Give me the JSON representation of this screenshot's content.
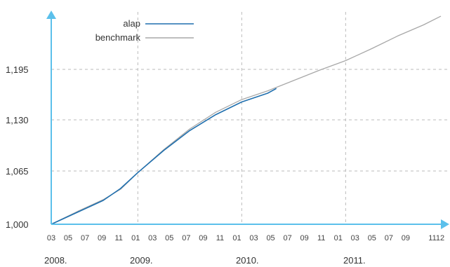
{
  "chart_data": {
    "type": "line",
    "title": "",
    "xlabel": "",
    "ylabel": "",
    "yticks": [
      "1,000",
      "1,065",
      "1,130",
      "1,195"
    ],
    "ylim": [
      1000,
      1260
    ],
    "xlim": [
      "2008-03",
      "2011-12"
    ],
    "x_month_labels": [
      "03",
      "05",
      "07",
      "09",
      "11",
      "01",
      "03",
      "05",
      "07",
      "09",
      "11",
      "01",
      "03",
      "05",
      "07",
      "09",
      "11",
      "01",
      "03",
      "05",
      "07",
      "09",
      "11",
      "12"
    ],
    "x_year_labels": [
      "2008.",
      "2009.",
      "2010.",
      "2011."
    ],
    "grid": true,
    "legend_position": "top-left",
    "colors": {
      "alap": "#1f6fae",
      "benchmark": "#a8a8a8",
      "axis": "#5bc0eb",
      "grid": "#bbbbbb"
    },
    "series": [
      {
        "name": "alap",
        "x": [
          "2008-03",
          "2008-06",
          "2008-09",
          "2008-11",
          "2009-01",
          "2009-04",
          "2009-07",
          "2009-10",
          "2010-01",
          "2010-04",
          "2010-05"
        ],
        "y": [
          1000,
          1015,
          1030,
          1045,
          1065,
          1093,
          1118,
          1138,
          1154,
          1165,
          1171
        ]
      },
      {
        "name": "benchmark",
        "x": [
          "2008-03",
          "2008-06",
          "2008-09",
          "2008-11",
          "2009-01",
          "2009-04",
          "2009-07",
          "2009-10",
          "2010-01",
          "2010-04",
          "2010-07",
          "2010-10",
          "2011-01",
          "2011-04",
          "2011-07",
          "2011-10",
          "2011-12"
        ],
        "y": [
          1000,
          1016,
          1031,
          1044,
          1065,
          1094,
          1120,
          1141,
          1157,
          1168,
          1181,
          1194,
          1206,
          1221,
          1237,
          1251,
          1262
        ]
      }
    ]
  }
}
